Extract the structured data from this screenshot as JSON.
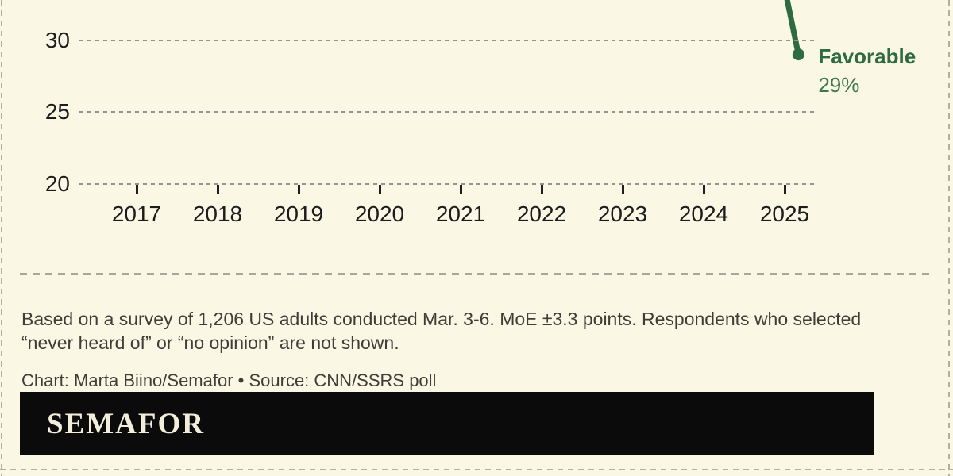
{
  "colors": {
    "background": "#faf7e5",
    "border_dash": "#b3b0a3",
    "gridline": "#96948c",
    "axis_text": "#1c1c1c",
    "line_green": "#2e6b40",
    "value_green": "#3d7852",
    "footnote_text": "#3e3e37",
    "logo_bar": "#0b0b0b",
    "logo_text": "#f2eedb"
  },
  "chart_data": {
    "type": "line",
    "title": "",
    "note": "Bottom crop of a favorability trend line chart; only the final point is visible",
    "x_ticks": [
      2017,
      2018,
      2019,
      2020,
      2021,
      2022,
      2023,
      2024,
      2025
    ],
    "y_ticks": [
      20,
      25,
      30
    ],
    "ylim_visible": [
      18.5,
      32.8
    ],
    "grid": "dashed horizontal gridlines at each y tick",
    "legend_position": "inline annotation at line end",
    "series": [
      {
        "name": "Favorable",
        "label": "Favorable",
        "value_label": "29%",
        "last_point": {
          "x_year": 2025.17,
          "value": 29
        }
      }
    ]
  },
  "footer": {
    "note": "Based on a survey of 1,206 US adults conducted Mar. 3-6. MoE ±3.3 points. Respondents who selected “never heard of” or “no opinion” are not shown.",
    "credit": "Chart: Marta Biino/Semafor • Source: CNN/SSRS poll"
  },
  "logo": {
    "wordmark": "SEMAFOR"
  }
}
